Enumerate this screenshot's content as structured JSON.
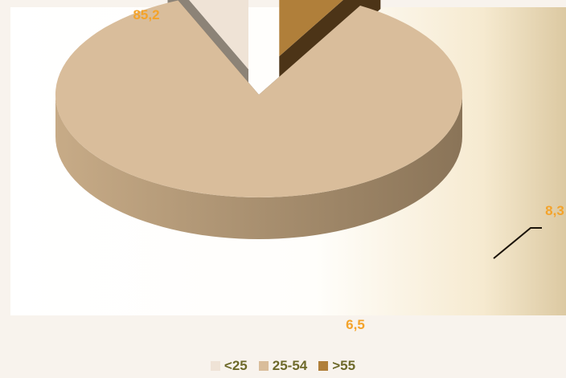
{
  "chart_data": {
    "type": "pie",
    "categories": [
      "<25",
      "25-54",
      ">55"
    ],
    "values": [
      6.5,
      85.2,
      8.3
    ],
    "data_labels": [
      "6,5",
      "85,2",
      "8,3"
    ],
    "colors": {
      "<25": {
        "top": "#efe3d6",
        "side": "#8c8377"
      },
      "25-54": {
        "top": "#d9bd9b",
        "side": "#9a8469"
      },
      ">55": {
        "top": "#b07f3a",
        "side": "#4c3417"
      }
    },
    "label_color": "#f4a32a",
    "legend_text_color": "#6e6a2a",
    "legend_position": "bottom",
    "style": "3d-exploded"
  }
}
